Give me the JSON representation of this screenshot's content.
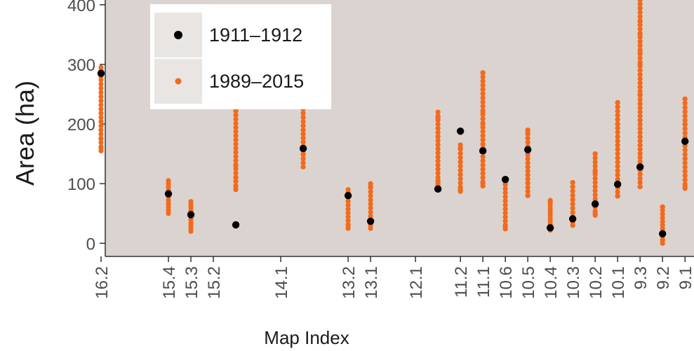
{
  "chart_data": {
    "type": "scatter",
    "title": "",
    "xlabel": "Map Index",
    "ylabel": "Area (ha)",
    "ylim": [
      -22,
      408
    ],
    "y_ticks": [
      0,
      100,
      200,
      300,
      400
    ],
    "grid": false,
    "legend_position": "top-left",
    "x_ticks": [
      {
        "label": "16.2",
        "pos": 1
      },
      {
        "label": "15.4",
        "pos": 4
      },
      {
        "label": "15.3",
        "pos": 5
      },
      {
        "label": "15.2",
        "pos": 6
      },
      {
        "label": "14.1",
        "pos": 9
      },
      {
        "label": "13.2",
        "pos": 12
      },
      {
        "label": "13.1",
        "pos": 13
      },
      {
        "label": "12.1",
        "pos": 15
      },
      {
        "label": "11.2",
        "pos": 17
      },
      {
        "label": "11.1",
        "pos": 18
      },
      {
        "label": "10.6",
        "pos": 19
      },
      {
        "label": "10.5",
        "pos": 20
      },
      {
        "label": "10.4",
        "pos": 21
      },
      {
        "label": "10.3",
        "pos": 22
      },
      {
        "label": "10.2",
        "pos": 23
      },
      {
        "label": "10.1",
        "pos": 24
      },
      {
        "label": "9.3",
        "pos": 25
      },
      {
        "label": "9.2",
        "pos": 26
      },
      {
        "label": "9.1",
        "pos": 27
      }
    ],
    "xlim": [
      0,
      27.4
    ],
    "series": [
      {
        "name": "1911–1912",
        "color": "#000000",
        "points": [
          {
            "x": 1,
            "y": 285
          },
          {
            "x": 4,
            "y": 83
          },
          {
            "x": 5,
            "y": 48
          },
          {
            "x": 7,
            "y": 31
          },
          {
            "x": 10,
            "y": 159
          },
          {
            "x": 12,
            "y": 80
          },
          {
            "x": 13,
            "y": 37
          },
          {
            "x": 16,
            "y": 91
          },
          {
            "x": 17,
            "y": 188
          },
          {
            "x": 18,
            "y": 155
          },
          {
            "x": 19,
            "y": 107
          },
          {
            "x": 20,
            "y": 157
          },
          {
            "x": 21,
            "y": 26
          },
          {
            "x": 22,
            "y": 41
          },
          {
            "x": 23,
            "y": 66
          },
          {
            "x": 24,
            "y": 99
          },
          {
            "x": 25,
            "y": 128
          },
          {
            "x": 26,
            "y": 16
          },
          {
            "x": 27,
            "y": 171
          }
        ]
      },
      {
        "name": "1989–2015",
        "color": "#f26b1d",
        "groups": [
          {
            "x": 1,
            "min": 155,
            "max": 295,
            "extra": [
              160,
              175,
              190,
              280,
              290
            ]
          },
          {
            "x": 4,
            "min": 50,
            "max": 105,
            "extra": [
              55,
              100
            ]
          },
          {
            "x": 5,
            "min": 20,
            "max": 70,
            "extra": [
              25,
              65
            ]
          },
          {
            "x": 7,
            "min": 90,
            "max": 222,
            "extra": [
              95,
              110,
              130,
              222
            ]
          },
          {
            "x": 10,
            "min": 128,
            "max": 308,
            "extra": [
              135,
              150,
              190,
              240,
              300
            ]
          },
          {
            "x": 12,
            "min": 25,
            "max": 90,
            "extra": [
              30,
              85
            ]
          },
          {
            "x": 13,
            "min": 25,
            "max": 100,
            "extra": [
              30,
              95
            ]
          },
          {
            "x": 16,
            "min": 97,
            "max": 220,
            "extra": [
              100,
              105,
              210
            ]
          },
          {
            "x": 17,
            "min": 87,
            "max": 165,
            "extra": [
              90,
              160
            ]
          },
          {
            "x": 18,
            "min": 96,
            "max": 286,
            "extra": [
              100,
              200,
              220,
              286
            ]
          },
          {
            "x": 19,
            "min": 24,
            "max": 105,
            "extra": [
              28,
              100
            ]
          },
          {
            "x": 20,
            "min": 80,
            "max": 190,
            "extra": [
              80,
              185
            ]
          },
          {
            "x": 21,
            "min": 22,
            "max": 72,
            "extra": [
              25,
              70
            ]
          },
          {
            "x": 22,
            "min": 30,
            "max": 102,
            "extra": [
              35,
              102
            ]
          },
          {
            "x": 23,
            "min": 47,
            "max": 150,
            "extra": [
              50,
              120,
              150
            ]
          },
          {
            "x": 24,
            "min": 79,
            "max": 236,
            "extra": [
              80,
              200,
              236
            ]
          },
          {
            "x": 25,
            "min": 95,
            "max": 408,
            "extra": [
              95,
              250,
              300,
              320,
              350,
              372,
              408
            ]
          },
          {
            "x": 26,
            "min": 0,
            "max": 61,
            "extra": [
              5,
              61
            ]
          },
          {
            "x": 27,
            "min": 92,
            "max": 242,
            "extra": [
              95,
              200,
              242
            ]
          }
        ]
      }
    ]
  }
}
